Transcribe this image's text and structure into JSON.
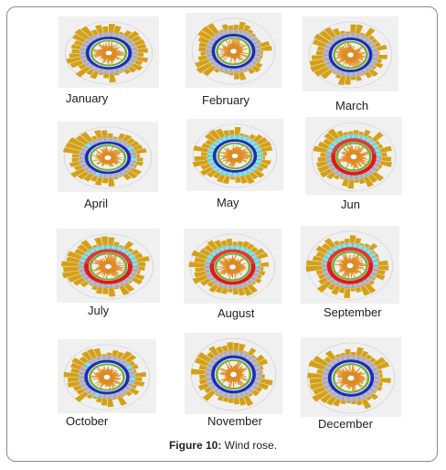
{
  "caption": {
    "number": "Figure 10:",
    "text": "Wind rose."
  },
  "chart_data": {
    "type": "wind-rose",
    "panels": [
      {
        "month": "January",
        "ring": "navy"
      },
      {
        "month": "February",
        "ring": "navy"
      },
      {
        "month": "March",
        "ring": "navy"
      },
      {
        "month": "April",
        "ring": "navy-with-cyan"
      },
      {
        "month": "May",
        "ring": "cyan-and-navy"
      },
      {
        "month": "Jun",
        "ring": "red-and-cyan"
      },
      {
        "month": "July",
        "ring": "red-and-cyan"
      },
      {
        "month": "August",
        "ring": "red-and-cyan"
      },
      {
        "month": "September",
        "ring": "red-and-cyan"
      },
      {
        "month": "October",
        "ring": "navy-with-cyan"
      },
      {
        "month": "November",
        "ring": "navy"
      },
      {
        "month": "December",
        "ring": "navy"
      }
    ],
    "colors": {
      "outer_bars": "#d4a017",
      "grey_band": "#b8b8c8",
      "navy": "#1d2bbf",
      "cyan": "#7fe6e6",
      "red": "#e01a1a",
      "green_band": "#6fb23c",
      "inner_spikes": "#e08a1e",
      "panel_bg": "#f0f0f0"
    }
  }
}
